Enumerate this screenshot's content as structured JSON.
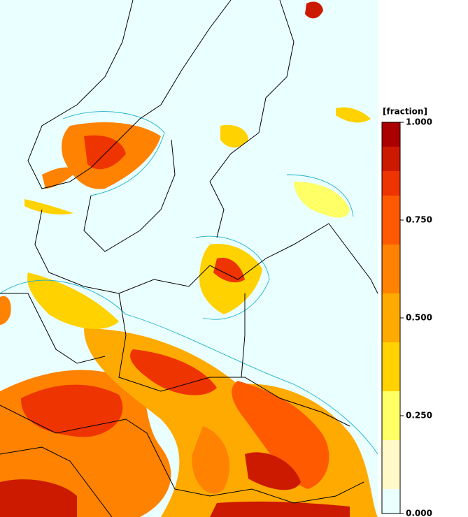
{
  "colorbar": {
    "title": "[fraction]",
    "range": [
      0,
      1
    ],
    "ticks": [
      {
        "value": 1,
        "label": "1.000"
      },
      {
        "value": 0.75,
        "label": "0.750"
      },
      {
        "value": 0.5,
        "label": "0.500"
      },
      {
        "value": 0.25,
        "label": "0.250"
      },
      {
        "value": 0,
        "label": "0.000"
      }
    ],
    "levels": [
      0,
      0.0625,
      0.1875,
      0.3125,
      0.4375,
      0.5625,
      0.6875,
      0.8125,
      0.875,
      0.9375,
      1
    ],
    "colors": [
      "#eaffff",
      "#fff8c8",
      "#ffff66",
      "#ffd200",
      "#ffaa00",
      "#ff8200",
      "#ff5a00",
      "#ee3400",
      "#cc1a00",
      "#aa0000"
    ]
  }
}
